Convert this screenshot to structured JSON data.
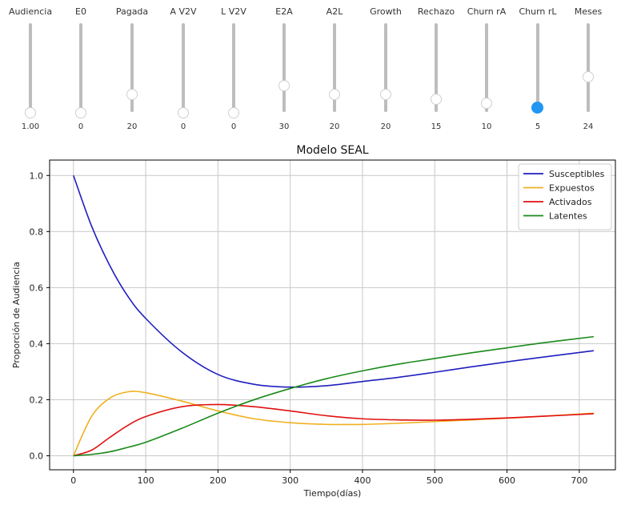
{
  "sliders": [
    {
      "label": "Audiencia",
      "value": "1.00",
      "level": 0.0
    },
    {
      "label": "E0",
      "value": "0",
      "level": 0.0
    },
    {
      "label": "Pagada",
      "value": "20",
      "level": 0.2
    },
    {
      "label": "A V2V",
      "value": "0",
      "level": 0.0
    },
    {
      "label": "L V2V",
      "value": "0",
      "level": 0.0
    },
    {
      "label": "E2A",
      "value": "30",
      "level": 0.3
    },
    {
      "label": "A2L",
      "value": "20",
      "level": 0.2
    },
    {
      "label": "Growth",
      "value": "20",
      "level": 0.2
    },
    {
      "label": "Rechazo",
      "value": "15",
      "level": 0.15
    },
    {
      "label": "Churn rA",
      "value": "10",
      "level": 0.1
    },
    {
      "label": "Churn rL",
      "value": "5",
      "level": 0.05,
      "active": true
    },
    {
      "label": "Meses",
      "value": "24",
      "level": 0.4
    }
  ],
  "chart_data": {
    "type": "line",
    "title": "Modelo SEAL",
    "xlabel": "Tiempo(días)",
    "ylabel": "Proporción de Audiencia",
    "xlim": [
      -33,
      750
    ],
    "ylim": [
      -0.05,
      1.055
    ],
    "xticks": [
      0,
      100,
      200,
      300,
      400,
      500,
      600,
      700
    ],
    "yticks": [
      0.0,
      0.2,
      0.4,
      0.6,
      0.8,
      1.0
    ],
    "xtick_labels": [
      "0",
      "100",
      "200",
      "300",
      "400",
      "500",
      "600",
      "700"
    ],
    "ytick_labels": [
      "0.0",
      "0.2",
      "0.4",
      "0.6",
      "0.8",
      "1.0"
    ],
    "grid": true,
    "legend_position": "top-right",
    "x": [
      0,
      25,
      50,
      75,
      100,
      150,
      200,
      250,
      300,
      350,
      400,
      450,
      500,
      550,
      600,
      650,
      720
    ],
    "series": [
      {
        "name": "Susceptibles",
        "color": "#1f1fbf",
        "values": [
          1.0,
          0.82,
          0.68,
          0.57,
          0.49,
          0.37,
          0.29,
          0.255,
          0.245,
          0.25,
          0.265,
          0.28,
          0.298,
          0.317,
          0.335,
          0.352,
          0.375
        ]
      },
      {
        "name": "Expuestos",
        "color": "#f0b020",
        "values": [
          0.0,
          0.14,
          0.205,
          0.228,
          0.225,
          0.195,
          0.16,
          0.132,
          0.118,
          0.112,
          0.112,
          0.116,
          0.122,
          0.128,
          0.134,
          0.141,
          0.152
        ]
      },
      {
        "name": "Activados",
        "color": "#e01010",
        "values": [
          0.0,
          0.02,
          0.065,
          0.108,
          0.14,
          0.175,
          0.183,
          0.175,
          0.16,
          0.143,
          0.132,
          0.128,
          0.127,
          0.13,
          0.135,
          0.141,
          0.15
        ]
      },
      {
        "name": "Latentes",
        "color": "#1a8a1a",
        "values": [
          0.0,
          0.005,
          0.014,
          0.03,
          0.048,
          0.098,
          0.152,
          0.2,
          0.24,
          0.275,
          0.303,
          0.327,
          0.347,
          0.367,
          0.385,
          0.403,
          0.425
        ]
      }
    ]
  }
}
